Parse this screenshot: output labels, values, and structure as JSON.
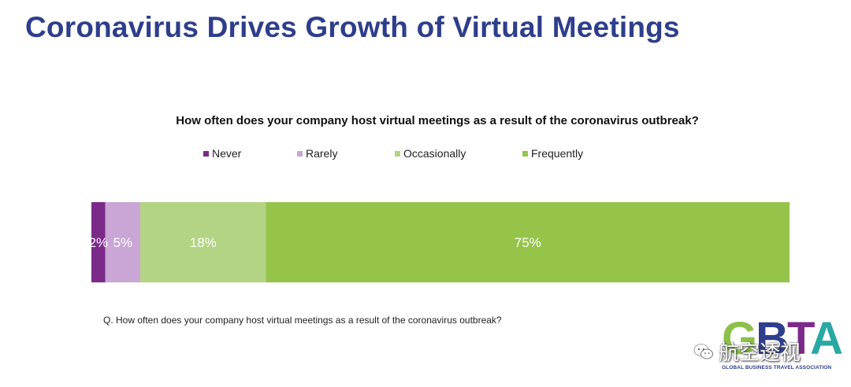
{
  "title": "Coronavirus Drives Growth of Virtual Meetings",
  "chart_data": {
    "type": "bar",
    "orientation": "horizontal-stacked-100",
    "title": "How often does your company host virtual meetings as a result of the coronavirus outbreak?",
    "categories": [
      "Never",
      "Rarely",
      "Occasionally",
      "Frequently"
    ],
    "values": [
      2,
      5,
      18,
      75
    ],
    "value_labels": [
      "2%",
      "5%",
      "18%",
      "75%"
    ],
    "colors": [
      "#7b2a8a",
      "#c9a6d6",
      "#b3d583",
      "#96c44a"
    ],
    "legend_placement": "top",
    "grid": false
  },
  "footnote": "Q. How often does your company host virtual meetings as a result of the coronavirus outbreak?",
  "logo": {
    "letters": [
      "G",
      "B",
      "T",
      "A"
    ],
    "letter_colors": [
      "#8cc04a",
      "#2e3e8c",
      "#7b2a8a",
      "#28a9a3"
    ],
    "tagline": "GLOBAL BUSINESS TRAVEL ASSOCIATION"
  },
  "watermark": {
    "icon": "wechat-icon",
    "text": "航空透视"
  },
  "colors": {
    "title": "#2e3e8c"
  }
}
